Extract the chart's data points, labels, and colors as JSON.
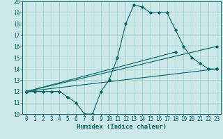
{
  "xlabel": "Humidex (Indice chaleur)",
  "bg_color": "#cce8e8",
  "grid_color": "#99cccc",
  "line_color": "#006666",
  "xlim": [
    -0.5,
    23.5
  ],
  "ylim": [
    10,
    20
  ],
  "xticks": [
    0,
    1,
    2,
    3,
    4,
    5,
    6,
    7,
    8,
    9,
    10,
    11,
    12,
    13,
    14,
    15,
    16,
    17,
    18,
    19,
    20,
    21,
    22,
    23
  ],
  "yticks": [
    10,
    11,
    12,
    13,
    14,
    15,
    16,
    17,
    18,
    19,
    20
  ],
  "main_x": [
    0,
    1,
    2,
    3,
    4,
    5,
    6,
    7,
    8,
    9,
    10,
    11,
    12,
    13,
    14,
    15,
    16,
    17,
    18,
    19,
    20,
    21,
    22,
    23
  ],
  "main_y": [
    12,
    12,
    12,
    12,
    12,
    11.5,
    11,
    10,
    10,
    12,
    13,
    15,
    18,
    19.7,
    19.5,
    19,
    19,
    19,
    17.5,
    16,
    15,
    14.5,
    14,
    14
  ],
  "line2_x": [
    0,
    23
  ],
  "line2_y": [
    12,
    14
  ],
  "line3_x": [
    0,
    23
  ],
  "line3_y": [
    12,
    16
  ],
  "line4_x": [
    0,
    18
  ],
  "line4_y": [
    12,
    15.5
  ],
  "marker": "D",
  "marker_size": 1.8,
  "line_width": 0.8,
  "xlabel_fontsize": 6.5,
  "tick_fontsize": 5.5
}
